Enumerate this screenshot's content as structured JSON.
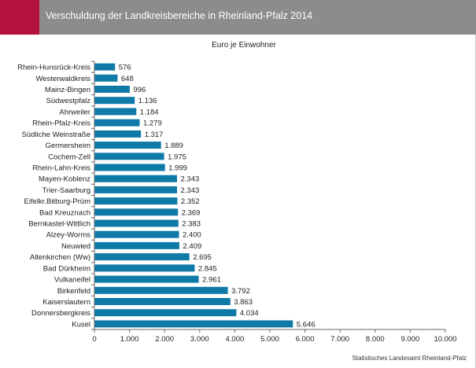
{
  "header": {
    "title": "Verschuldung der Landkreisbereiche in Rheinland-Pfalz 2014"
  },
  "source": "Statistisches Landesamt Rheinland-Pfalz",
  "colors": {
    "bar": "#0f7aa8",
    "header": "#8c8c8c",
    "accent": "#b5123f"
  },
  "chart_data": {
    "type": "bar",
    "orientation": "horizontal",
    "title": "Euro je Einwohner",
    "categories": [
      "Rhein-Hunsrück-Kreis",
      "Westerwaldkreis",
      "Mainz-Bingen",
      "Südwestpfalz",
      "Ahrweiler",
      "Rhein-Pfalz-Kreis",
      "Südliche Weinstraße",
      "Germersheim",
      "Cochem-Zell",
      "Rhein-Lahn-Kreis",
      "Mayen-Koblenz",
      "Trier-Saarburg",
      "Eifelkr.Bitburg-Prüm",
      "Bad Kreuznach",
      "Bernkastel-Wittlich",
      "Alzey-Worms",
      "Neuwied",
      "Altenkirchen (Ww)",
      "Bad Dürkheim",
      "Vulkaneifel",
      "Birkenfeld",
      "Kaiserslautern",
      "Donnersbergkreis",
      "Kusel"
    ],
    "values": [
      576,
      648,
      996,
      1136,
      1184,
      1279,
      1317,
      1889,
      1975,
      1999,
      2343,
      2343,
      2352,
      2369,
      2383,
      2400,
      2409,
      2695,
      2845,
      2961,
      3792,
      3863,
      4034,
      5646
    ],
    "value_labels": [
      "576",
      "648",
      "996",
      "1.136",
      "1.184",
      "1.279",
      "1.317",
      "1.889",
      "1.975",
      "1.999",
      "2.343",
      "2.343",
      "2.352",
      "2.369",
      "2.383",
      "2.400",
      "2.409",
      "2.695",
      "2.845",
      "2.961",
      "3.792",
      "3.863",
      "4.034",
      "5.646"
    ],
    "xlim": [
      0,
      10000
    ],
    "xticks": [
      0,
      1000,
      2000,
      3000,
      4000,
      5000,
      6000,
      7000,
      8000,
      9000,
      10000
    ],
    "xtick_labels": [
      "0",
      "1.000",
      "2.000",
      "3.000",
      "4.000",
      "5.000",
      "6.000",
      "7.000",
      "8.000",
      "9.000",
      "10.000"
    ],
    "grid": false,
    "legend": "none"
  }
}
